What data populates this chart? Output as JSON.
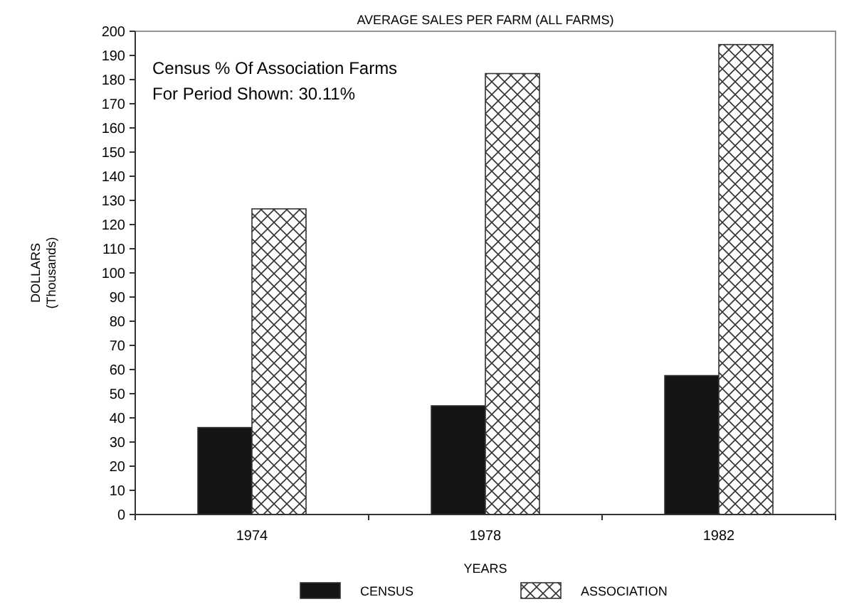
{
  "chart_data": {
    "type": "bar",
    "title": "AVERAGE SALES PER FARM (ALL FARMS)",
    "xlabel": "YEARS",
    "ylabel": "DOLLARS\n(Thousands)",
    "categories": [
      "1974",
      "1978",
      "1982"
    ],
    "series": [
      {
        "name": "CENSUS",
        "color": "#141414",
        "values": [
          36,
          45,
          57.5
        ]
      },
      {
        "name": "ASSOCIATION",
        "color": "#333333",
        "values": [
          126.5,
          182.5,
          194.5
        ]
      }
    ],
    "ylim": [
      0,
      200
    ],
    "yticks": [
      0,
      10,
      20,
      30,
      40,
      50,
      60,
      70,
      80,
      90,
      100,
      110,
      120,
      130,
      140,
      150,
      160,
      170,
      180,
      190,
      200
    ],
    "annotations": [
      "Census % Of Association Farms",
      "For Period Shown: 30.11%"
    ],
    "legend": "bottom",
    "grid": false
  }
}
